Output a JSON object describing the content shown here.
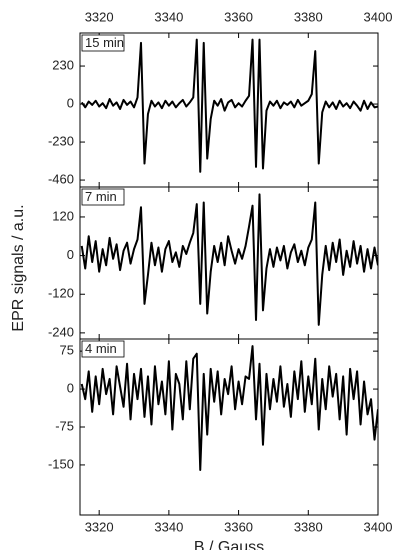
{
  "chart_data": [
    {
      "type": "line",
      "annotation": "15 min",
      "color": "#000000",
      "xlim": [
        3314.5,
        3400
      ],
      "xticks": [
        3320,
        3340,
        3360,
        3380,
        3400
      ],
      "ylim": [
        -502,
        430
      ],
      "yticks": [
        230,
        0,
        -230,
        -460
      ],
      "x": [
        3315,
        3316,
        3317,
        3318,
        3319,
        3320,
        3321,
        3322,
        3323,
        3324,
        3325,
        3326,
        3327,
        3328,
        3329,
        3330,
        3331,
        3332,
        3333,
        3334,
        3335,
        3336,
        3337,
        3338,
        3339,
        3340,
        3341,
        3342,
        3343,
        3344,
        3345,
        3346,
        3347,
        3348,
        3349,
        3350,
        3351,
        3352,
        3353,
        3354,
        3355,
        3356,
        3357,
        3358,
        3359,
        3360,
        3361,
        3362,
        3363,
        3364,
        3365,
        3366,
        3367,
        3368,
        3369,
        3370,
        3371,
        3372,
        3373,
        3374,
        3375,
        3376,
        3377,
        3378,
        3379,
        3380,
        3381,
        3382,
        3383,
        3384,
        3385,
        3386,
        3387,
        3388,
        3389,
        3390,
        3391,
        3392,
        3393,
        3394,
        3395,
        3396,
        3397,
        3398,
        3399,
        3400
      ],
      "values": [
        10,
        -20,
        15,
        -5,
        20,
        -15,
        5,
        -25,
        30,
        -10,
        10,
        -30,
        25,
        -5,
        15,
        -20,
        40,
        370,
        -360,
        -60,
        20,
        -15,
        10,
        -25,
        20,
        -10,
        15,
        -20,
        5,
        25,
        -15,
        10,
        40,
        390,
        -410,
        370,
        -330,
        -90,
        20,
        -10,
        30,
        -40,
        10,
        25,
        -20,
        5,
        -15,
        20,
        50,
        390,
        -380,
        390,
        -390,
        -40,
        15,
        -10,
        20,
        -25,
        10,
        -5,
        15,
        -20,
        25,
        -10,
        5,
        20,
        60,
        320,
        -360,
        -50,
        15,
        -20,
        10,
        -30,
        20,
        -15,
        5,
        -25,
        15,
        -10,
        -40,
        20,
        -30,
        10,
        -20,
        -15
      ]
    },
    {
      "type": "line",
      "annotation": "7 min",
      "color": "#000000",
      "ylabel": "EPR signals / a.u.",
      "xlim": [
        3314.5,
        3400
      ],
      "xticks": [
        3320,
        3340,
        3360,
        3380,
        3400
      ],
      "ylim": [
        -259,
        213
      ],
      "yticks": [
        120,
        0,
        -120,
        -240
      ],
      "x": [
        3315,
        3316,
        3317,
        3318,
        3319,
        3320,
        3321,
        3322,
        3323,
        3324,
        3325,
        3326,
        3327,
        3328,
        3329,
        3330,
        3331,
        3332,
        3333,
        3334,
        3335,
        3336,
        3337,
        3338,
        3339,
        3340,
        3341,
        3342,
        3343,
        3344,
        3345,
        3346,
        3347,
        3348,
        3349,
        3350,
        3351,
        3352,
        3353,
        3354,
        3355,
        3356,
        3357,
        3358,
        3359,
        3360,
        3361,
        3362,
        3363,
        3364,
        3365,
        3366,
        3367,
        3368,
        3369,
        3370,
        3371,
        3372,
        3373,
        3374,
        3375,
        3376,
        3377,
        3378,
        3379,
        3380,
        3381,
        3382,
        3383,
        3384,
        3385,
        3386,
        3387,
        3388,
        3389,
        3390,
        3391,
        3392,
        3393,
        3394,
        3395,
        3396,
        3397,
        3398,
        3399,
        3400
      ],
      "values": [
        30,
        -40,
        60,
        -20,
        45,
        -50,
        20,
        -30,
        55,
        -10,
        35,
        -45,
        15,
        40,
        -25,
        20,
        50,
        150,
        -150,
        -60,
        40,
        -30,
        25,
        -50,
        20,
        45,
        -20,
        10,
        -35,
        30,
        5,
        40,
        70,
        160,
        -150,
        165,
        -180,
        -50,
        30,
        -20,
        40,
        -30,
        60,
        15,
        -25,
        20,
        -10,
        30,
        90,
        155,
        -200,
        190,
        -170,
        -40,
        20,
        -35,
        25,
        -15,
        30,
        -40,
        10,
        35,
        -20,
        15,
        -30,
        25,
        50,
        165,
        -215,
        -60,
        30,
        -45,
        40,
        -20,
        50,
        -60,
        15,
        -35,
        45,
        -25,
        30,
        -50,
        20,
        -40,
        25,
        -30
      ]
    },
    {
      "type": "line",
      "annotation": "4 min",
      "color": "#000000",
      "xlabel": "B / Gauss",
      "xlim": [
        3314.5,
        3400
      ],
      "xticks": [
        3320,
        3340,
        3360,
        3380,
        3400
      ],
      "ylim": [
        -249,
        99
      ],
      "yticks": [
        75,
        0,
        -75,
        -150
      ],
      "x": [
        3315,
        3316,
        3317,
        3318,
        3319,
        3320,
        3321,
        3322,
        3323,
        3324,
        3325,
        3326,
        3327,
        3328,
        3329,
        3330,
        3331,
        3332,
        3333,
        3334,
        3335,
        3336,
        3337,
        3338,
        3339,
        3340,
        3341,
        3342,
        3343,
        3344,
        3345,
        3346,
        3347,
        3348,
        3349,
        3350,
        3351,
        3352,
        3353,
        3354,
        3355,
        3356,
        3357,
        3358,
        3359,
        3360,
        3361,
        3362,
        3363,
        3364,
        3365,
        3366,
        3367,
        3368,
        3369,
        3370,
        3371,
        3372,
        3373,
        3374,
        3375,
        3376,
        3377,
        3378,
        3379,
        3380,
        3381,
        3382,
        3383,
        3384,
        3385,
        3386,
        3387,
        3388,
        3389,
        3390,
        3391,
        3392,
        3393,
        3394,
        3395,
        3396,
        3397,
        3398,
        3399,
        3400
      ],
      "values": [
        10,
        -20,
        35,
        -45,
        25,
        -30,
        40,
        -10,
        20,
        -50,
        45,
        5,
        -35,
        50,
        -60,
        30,
        -20,
        40,
        -55,
        25,
        -70,
        45,
        -30,
        15,
        -50,
        55,
        -80,
        30,
        10,
        -60,
        55,
        -40,
        60,
        70,
        -160,
        30,
        -90,
        40,
        -25,
        35,
        -50,
        20,
        -10,
        45,
        -40,
        15,
        -30,
        25,
        20,
        85,
        -60,
        50,
        -110,
        30,
        -40,
        20,
        -25,
        45,
        -35,
        10,
        -55,
        35,
        -20,
        55,
        -45,
        25,
        -30,
        60,
        -80,
        20,
        -40,
        45,
        -15,
        30,
        -60,
        25,
        -90,
        40,
        -20,
        35,
        -70,
        15,
        -50,
        -20,
        -100,
        -40
      ]
    }
  ]
}
